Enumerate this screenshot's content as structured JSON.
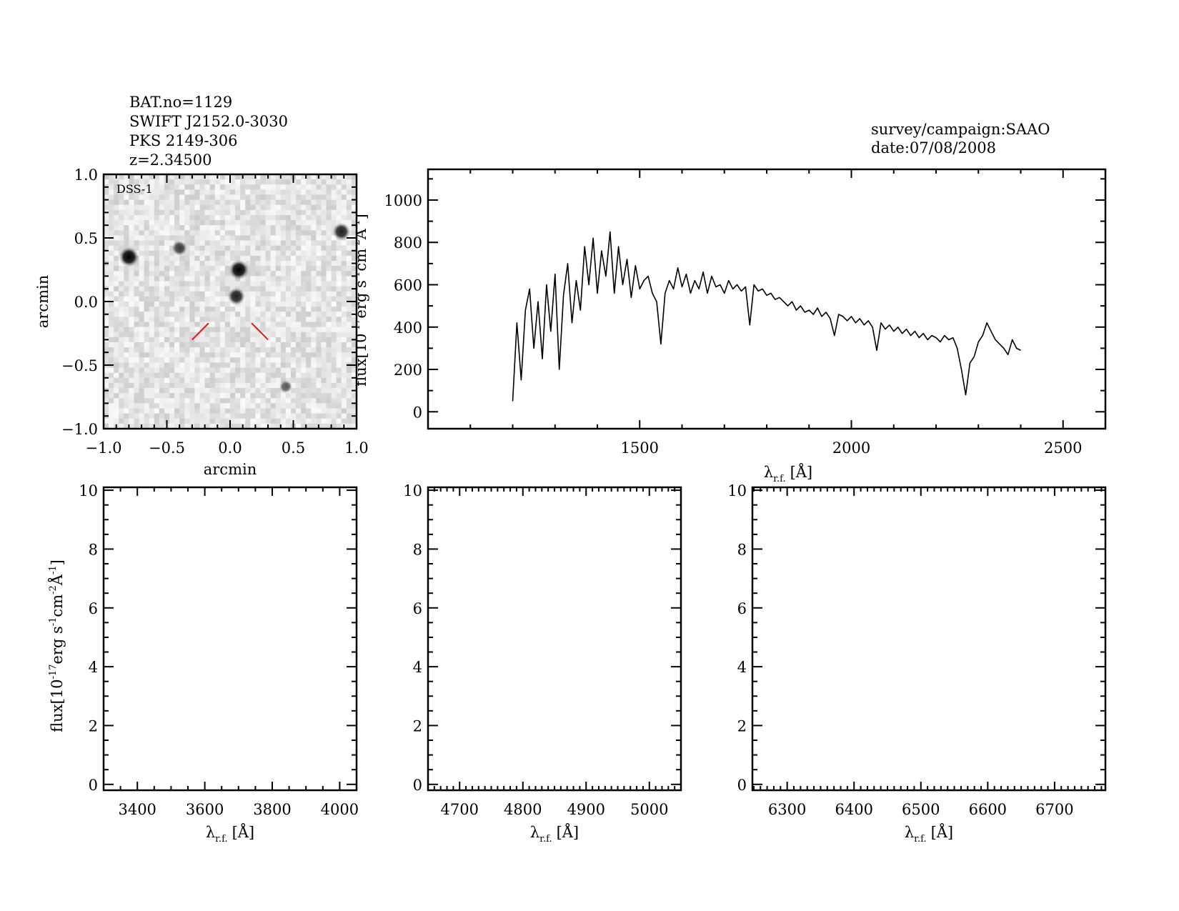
{
  "header_left": {
    "line1": "BAT.no=1129",
    "line2": "SWIFT J2152.0-3030",
    "line3": "PKS 2149-306",
    "line4": "z=2.34500"
  },
  "header_right": {
    "line1": "survey/campaign:SAAO",
    "line2": "date:07/08/2008"
  },
  "colors": {
    "marker": "#e8141c",
    "line": "#000000",
    "sky": "#e6e6e6"
  },
  "chart_data": [
    {
      "id": "dss-image",
      "type": "image",
      "label": "DSS-1",
      "xlabel": "arcmin",
      "ylabel": "arcmin",
      "xlim": [
        -1.0,
        1.0
      ],
      "ylim": [
        -1.0,
        1.0
      ],
      "xtick_labels": [
        "-1.0",
        "-0.5",
        "0.0",
        "0.5",
        "1.0"
      ],
      "ytick_labels": [
        "-1.0",
        "-0.5",
        "0.0",
        "0.5",
        "1.0"
      ],
      "sources": [
        {
          "x": -0.8,
          "y": 0.35,
          "brightness": 1.0
        },
        {
          "x": -0.4,
          "y": 0.42,
          "brightness": 0.6
        },
        {
          "x": 0.07,
          "y": 0.25,
          "brightness": 1.0
        },
        {
          "x": 0.05,
          "y": 0.04,
          "brightness": 0.8
        },
        {
          "x": 0.88,
          "y": 0.55,
          "brightness": 0.8
        },
        {
          "x": 0.44,
          "y": -0.67,
          "brightness": 0.4
        }
      ],
      "target_marker": [
        {
          "x1": -0.3,
          "y1": -0.3,
          "x2": -0.17,
          "y2": -0.17
        },
        {
          "x1": 0.17,
          "y1": -0.17,
          "x2": 0.3,
          "y2": -0.3
        }
      ]
    },
    {
      "id": "main-spectrum",
      "type": "line",
      "xlabel_main": "λ",
      "xlabel_sub": "r.f.",
      "xlabel_unit": "[Å]",
      "ylabel_parts": [
        "flux[10",
        "-17",
        "erg s",
        "-1",
        "cm",
        "-2",
        "Å",
        "-1",
        "]"
      ],
      "xlim": [
        1000,
        2600
      ],
      "ylim": [
        -80,
        1145
      ],
      "xtick_labels": [
        "1500",
        "2000",
        "2500"
      ],
      "ytick_labels": [
        "0",
        "200",
        "400",
        "600",
        "800",
        "1000"
      ],
      "wavelength_start": 1200,
      "wavelength_step": 10,
      "flux": [
        50,
        420,
        150,
        480,
        580,
        300,
        520,
        250,
        600,
        380,
        650,
        200,
        550,
        700,
        420,
        620,
        480,
        780,
        600,
        820,
        560,
        760,
        640,
        850,
        560,
        780,
        600,
        720,
        540,
        690,
        580,
        620,
        640,
        560,
        520,
        320,
        560,
        620,
        580,
        680,
        590,
        650,
        560,
        620,
        580,
        660,
        560,
        640,
        590,
        600,
        560,
        620,
        580,
        600,
        570,
        590,
        410,
        600,
        570,
        580,
        550,
        560,
        530,
        540,
        520,
        500,
        520,
        480,
        500,
        470,
        480,
        460,
        490,
        450,
        470,
        440,
        360,
        460,
        450,
        430,
        450,
        420,
        440,
        410,
        430,
        400,
        290,
        420,
        390,
        410,
        380,
        400,
        370,
        390,
        360,
        380,
        350,
        370,
        340,
        360,
        350,
        330,
        360,
        340,
        350,
        300,
        200,
        80,
        230,
        260,
        330,
        360,
        420,
        380,
        340,
        320,
        300,
        270,
        340,
        300,
        290
      ]
    },
    {
      "id": "zoom-panel-1",
      "type": "line",
      "xlabel_main": "λ",
      "xlabel_sub": "r.f.",
      "xlabel_unit": "[Å]",
      "ylabel_parts": [
        "flux[10",
        "-17",
        "erg s",
        "-1",
        "cm",
        "-2",
        "Å",
        "-1",
        "]"
      ],
      "xlim": [
        3300,
        4050
      ],
      "ylim": [
        -0.2,
        10.1
      ],
      "xtick_labels": [
        "3400",
        "3600",
        "3800",
        "4000"
      ],
      "ytick_labels": [
        "0",
        "2",
        "4",
        "6",
        "8",
        "10"
      ],
      "flux": []
    },
    {
      "id": "zoom-panel-2",
      "type": "line",
      "xlabel_main": "λ",
      "xlabel_sub": "r.f.",
      "xlabel_unit": "[Å]",
      "xlim": [
        4650,
        5050
      ],
      "ylim": [
        -0.2,
        10.1
      ],
      "xtick_labels": [
        "4700",
        "4800",
        "4900",
        "5000"
      ],
      "ytick_labels": [
        "0",
        "2",
        "4",
        "6",
        "8",
        "10"
      ],
      "flux": []
    },
    {
      "id": "zoom-panel-3",
      "type": "line",
      "xlabel_main": "λ",
      "xlabel_sub": "r.f.",
      "xlabel_unit": "[Å]",
      "xlim": [
        6248,
        6776
      ],
      "ylim": [
        -0.2,
        10.1
      ],
      "xtick_labels": [
        "6300",
        "6400",
        "6500",
        "6600",
        "6700"
      ],
      "ytick_labels": [
        "0",
        "2",
        "4",
        "6",
        "8",
        "10"
      ],
      "flux": []
    }
  ]
}
